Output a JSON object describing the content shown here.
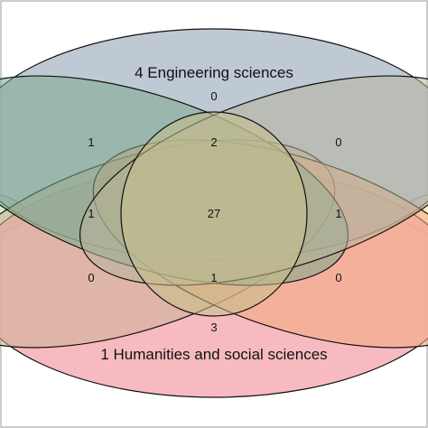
{
  "sets": [
    {
      "id": "engineering",
      "label": "4 Engineering sciences",
      "fill": "#a9b7c6"
    },
    {
      "id": "left",
      "label": "",
      "fill": "#7aa88a"
    },
    {
      "id": "right",
      "label": "",
      "fill": "#b6b29a"
    },
    {
      "id": "center",
      "label": "",
      "fill": "#c7c08a"
    },
    {
      "id": "lower_left",
      "label": "",
      "fill": "#c9b08f"
    },
    {
      "id": "lower_right",
      "label": "",
      "fill": "#f2a77e"
    },
    {
      "id": "humanities",
      "label": "1 Humanities and social sciences",
      "fill": "#f7b3ba"
    }
  ],
  "regions": {
    "top_only": "0",
    "upper_left": "1",
    "upper_center": "2",
    "upper_right": "0",
    "middle_left": "1",
    "center": "27",
    "middle_right": "1",
    "lower_left": "0",
    "lower_center": "1",
    "lower_right": "0",
    "bottom_only": "3"
  },
  "colors": {
    "stroke": "#111111",
    "left_edge": "#d9ecc9",
    "right_edge": "#fbecc2"
  }
}
